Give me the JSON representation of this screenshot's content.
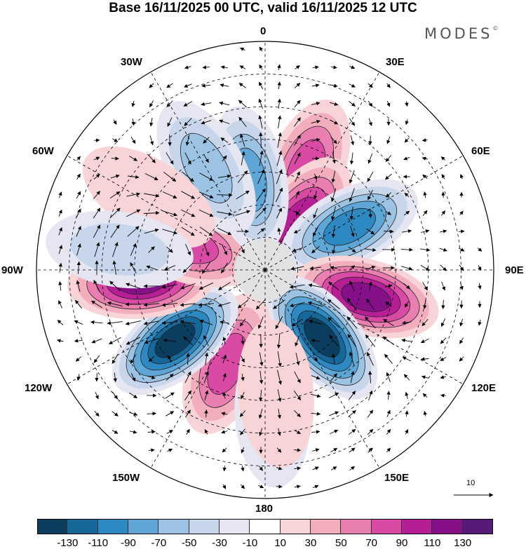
{
  "title": "Base 16/11/2025 00 UTC, valid 16/11/2025 12 UTC",
  "brand": {
    "text": "MODES",
    "mark": "©"
  },
  "longitude_labels": {
    "lon_0": "0",
    "lon_30e": "30E",
    "lon_60e": "60E",
    "lon_90e": "90E",
    "lon_120e": "120E",
    "lon_150e": "150E",
    "lon_180": "180",
    "lon_150w": "150W",
    "lon_120w": "120W",
    "lon_90w": "90W",
    "lon_60w": "60W",
    "lon_30w": "30W"
  },
  "colorbar": {
    "colors": [
      "#0b3e5e",
      "#16689a",
      "#2e88c2",
      "#5ea6d6",
      "#9cc3e3",
      "#c8d6ec",
      "#e6e6f3",
      "#ffffff",
      "#f8d4d7",
      "#f3aebd",
      "#e97fb0",
      "#d84aa4",
      "#b51e95",
      "#86108a",
      "#571a78"
    ],
    "ticks": [
      "-130",
      "-110",
      "-90",
      "-70",
      "-50",
      "-30",
      "-10",
      "10",
      "30",
      "50",
      "70",
      "90",
      "110",
      "130"
    ]
  },
  "reference_vector": {
    "label": "10"
  },
  "anomaly_centers": [
    {
      "lon": 22,
      "colat": 33,
      "value": 80
    },
    {
      "lon": 35,
      "colat": 18,
      "value": 95
    },
    {
      "lon": 63,
      "colat": 29,
      "value": -95
    },
    {
      "lon": 105,
      "colat": 32,
      "value": 115
    },
    {
      "lon": 140,
      "colat": 27,
      "value": -130
    },
    {
      "lon": -158,
      "colat": 31,
      "value": 85
    },
    {
      "lon": -128,
      "colat": 35,
      "value": -130
    },
    {
      "lon": -95,
      "colat": 38,
      "value": 120
    },
    {
      "lon": -72,
      "colat": 25,
      "value": 85
    },
    {
      "lon": -10,
      "colat": 28,
      "value": -80
    },
    {
      "lon": -30,
      "colat": 36,
      "value": -55
    },
    {
      "lon": -58,
      "colat": 42,
      "value": 25
    },
    {
      "lon": -82,
      "colat": 45,
      "value": -30
    },
    {
      "lon": 177,
      "colat": 44,
      "value": -45
    },
    {
      "lon": 175,
      "colat": 38,
      "value": 25
    }
  ]
}
